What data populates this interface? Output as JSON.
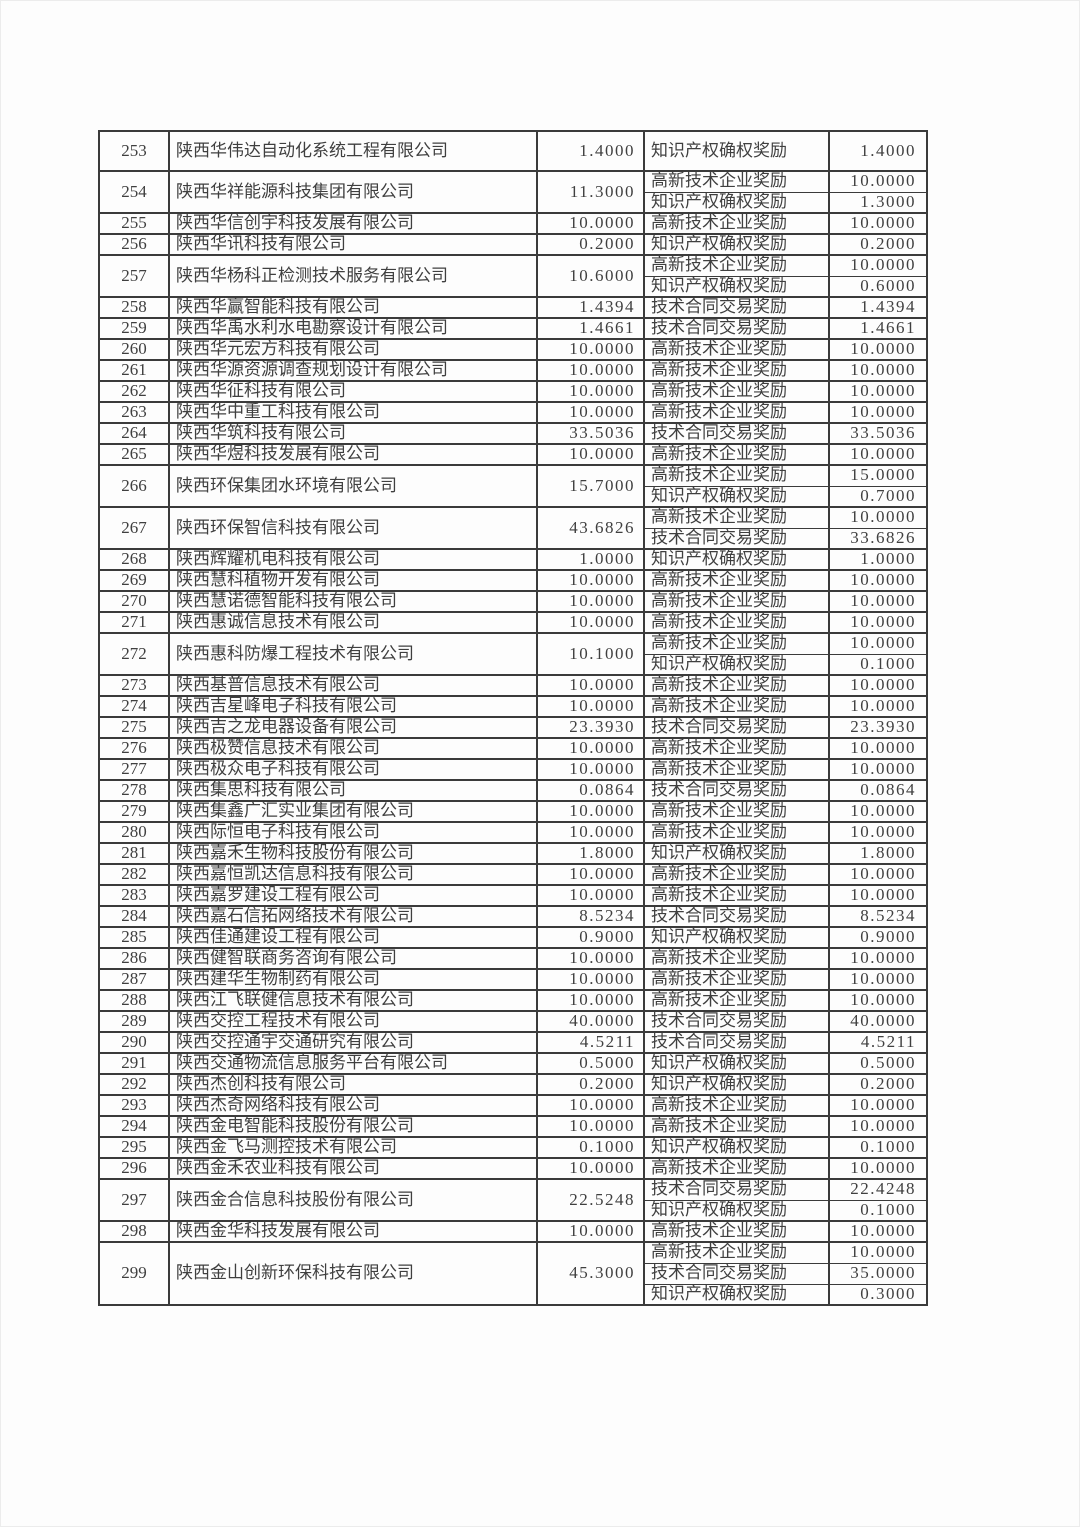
{
  "colors": {
    "table_border": "#3b3b3b",
    "text": "#3f3f3f",
    "page_background": "#fdfdfd"
  },
  "rows": [
    {
      "no": "253",
      "company": "陕西华伟达自动化系统工程有限公司",
      "total": "1.4000",
      "tall": true,
      "awards": [
        {
          "type": "知识产权确权奖励",
          "amount": "1.4000"
        }
      ]
    },
    {
      "no": "254",
      "company": "陕西华祥能源科技集团有限公司",
      "total": "11.3000",
      "awards": [
        {
          "type": "高新技术企业奖励",
          "amount": "10.0000"
        },
        {
          "type": "知识产权确权奖励",
          "amount": "1.3000"
        }
      ]
    },
    {
      "no": "255",
      "company": "陕西华信创宇科技发展有限公司",
      "total": "10.0000",
      "awards": [
        {
          "type": "高新技术企业奖励",
          "amount": "10.0000"
        }
      ]
    },
    {
      "no": "256",
      "company": "陕西华讯科技有限公司",
      "total": "0.2000",
      "awards": [
        {
          "type": "知识产权确权奖励",
          "amount": "0.2000"
        }
      ]
    },
    {
      "no": "257",
      "company": "陕西华杨科正检测技术服务有限公司",
      "total": "10.6000",
      "awards": [
        {
          "type": "高新技术企业奖励",
          "amount": "10.0000"
        },
        {
          "type": "知识产权确权奖励",
          "amount": "0.6000"
        }
      ]
    },
    {
      "no": "258",
      "company": "陕西华赢智能科技有限公司",
      "total": "1.4394",
      "awards": [
        {
          "type": "技术合同交易奖励",
          "amount": "1.4394"
        }
      ]
    },
    {
      "no": "259",
      "company": "陕西华禹水利水电勘察设计有限公司",
      "total": "1.4661",
      "awards": [
        {
          "type": "技术合同交易奖励",
          "amount": "1.4661"
        }
      ]
    },
    {
      "no": "260",
      "company": "陕西华元宏方科技有限公司",
      "total": "10.0000",
      "awards": [
        {
          "type": "高新技术企业奖励",
          "amount": "10.0000"
        }
      ]
    },
    {
      "no": "261",
      "company": "陕西华源资源调查规划设计有限公司",
      "total": "10.0000",
      "awards": [
        {
          "type": "高新技术企业奖励",
          "amount": "10.0000"
        }
      ]
    },
    {
      "no": "262",
      "company": "陕西华征科技有限公司",
      "total": "10.0000",
      "awards": [
        {
          "type": "高新技术企业奖励",
          "amount": "10.0000"
        }
      ]
    },
    {
      "no": "263",
      "company": "陕西华中重工科技有限公司",
      "total": "10.0000",
      "awards": [
        {
          "type": "高新技术企业奖励",
          "amount": "10.0000"
        }
      ]
    },
    {
      "no": "264",
      "company": "陕西华筑科技有限公司",
      "total": "33.5036",
      "awards": [
        {
          "type": "技术合同交易奖励",
          "amount": "33.5036"
        }
      ]
    },
    {
      "no": "265",
      "company": "陕西华煜科技发展有限公司",
      "total": "10.0000",
      "awards": [
        {
          "type": "高新技术企业奖励",
          "amount": "10.0000"
        }
      ]
    },
    {
      "no": "266",
      "company": "陕西环保集团水环境有限公司",
      "total": "15.7000",
      "awards": [
        {
          "type": "高新技术企业奖励",
          "amount": "15.0000"
        },
        {
          "type": "知识产权确权奖励",
          "amount": "0.7000"
        }
      ]
    },
    {
      "no": "267",
      "company": "陕西环保智信科技有限公司",
      "total": "43.6826",
      "awards": [
        {
          "type": "高新技术企业奖励",
          "amount": "10.0000"
        },
        {
          "type": "技术合同交易奖励",
          "amount": "33.6826"
        }
      ]
    },
    {
      "no": "268",
      "company": "陕西辉耀机电科技有限公司",
      "total": "1.0000",
      "awards": [
        {
          "type": "知识产权确权奖励",
          "amount": "1.0000"
        }
      ]
    },
    {
      "no": "269",
      "company": "陕西慧科植物开发有限公司",
      "total": "10.0000",
      "awards": [
        {
          "type": "高新技术企业奖励",
          "amount": "10.0000"
        }
      ]
    },
    {
      "no": "270",
      "company": "陕西慧诺德智能科技有限公司",
      "total": "10.0000",
      "awards": [
        {
          "type": "高新技术企业奖励",
          "amount": "10.0000"
        }
      ]
    },
    {
      "no": "271",
      "company": "陕西惠诚信息技术有限公司",
      "total": "10.0000",
      "awards": [
        {
          "type": "高新技术企业奖励",
          "amount": "10.0000"
        }
      ]
    },
    {
      "no": "272",
      "company": "陕西惠科防爆工程技术有限公司",
      "total": "10.1000",
      "awards": [
        {
          "type": "高新技术企业奖励",
          "amount": "10.0000"
        },
        {
          "type": "知识产权确权奖励",
          "amount": "0.1000"
        }
      ]
    },
    {
      "no": "273",
      "company": "陕西基普信息技术有限公司",
      "total": "10.0000",
      "awards": [
        {
          "type": "高新技术企业奖励",
          "amount": "10.0000"
        }
      ]
    },
    {
      "no": "274",
      "company": "陕西吉星峰电子科技有限公司",
      "total": "10.0000",
      "awards": [
        {
          "type": "高新技术企业奖励",
          "amount": "10.0000"
        }
      ]
    },
    {
      "no": "275",
      "company": "陕西吉之龙电器设备有限公司",
      "total": "23.3930",
      "awards": [
        {
          "type": "技术合同交易奖励",
          "amount": "23.3930"
        }
      ]
    },
    {
      "no": "276",
      "company": "陕西极赞信息技术有限公司",
      "total": "10.0000",
      "awards": [
        {
          "type": "高新技术企业奖励",
          "amount": "10.0000"
        }
      ]
    },
    {
      "no": "277",
      "company": "陕西极众电子科技有限公司",
      "total": "10.0000",
      "awards": [
        {
          "type": "高新技术企业奖励",
          "amount": "10.0000"
        }
      ]
    },
    {
      "no": "278",
      "company": "陕西集思科技有限公司",
      "total": "0.0864",
      "awards": [
        {
          "type": "技术合同交易奖励",
          "amount": "0.0864"
        }
      ]
    },
    {
      "no": "279",
      "company": "陕西集鑫广汇实业集团有限公司",
      "total": "10.0000",
      "awards": [
        {
          "type": "高新技术企业奖励",
          "amount": "10.0000"
        }
      ]
    },
    {
      "no": "280",
      "company": "陕西际恒电子科技有限公司",
      "total": "10.0000",
      "awards": [
        {
          "type": "高新技术企业奖励",
          "amount": "10.0000"
        }
      ]
    },
    {
      "no": "281",
      "company": "陕西嘉禾生物科技股份有限公司",
      "total": "1.8000",
      "awards": [
        {
          "type": "知识产权确权奖励",
          "amount": "1.8000"
        }
      ]
    },
    {
      "no": "282",
      "company": "陕西嘉恒凯达信息科技有限公司",
      "total": "10.0000",
      "awards": [
        {
          "type": "高新技术企业奖励",
          "amount": "10.0000"
        }
      ]
    },
    {
      "no": "283",
      "company": "陕西嘉罗建设工程有限公司",
      "total": "10.0000",
      "awards": [
        {
          "type": "高新技术企业奖励",
          "amount": "10.0000"
        }
      ]
    },
    {
      "no": "284",
      "company": "陕西嘉石信拓网络技术有限公司",
      "total": "8.5234",
      "awards": [
        {
          "type": "技术合同交易奖励",
          "amount": "8.5234"
        }
      ]
    },
    {
      "no": "285",
      "company": "陕西佳通建设工程有限公司",
      "total": "0.9000",
      "awards": [
        {
          "type": "知识产权确权奖励",
          "amount": "0.9000"
        }
      ]
    },
    {
      "no": "286",
      "company": "陕西健智联商务咨询有限公司",
      "total": "10.0000",
      "awards": [
        {
          "type": "高新技术企业奖励",
          "amount": "10.0000"
        }
      ]
    },
    {
      "no": "287",
      "company": "陕西建华生物制药有限公司",
      "total": "10.0000",
      "awards": [
        {
          "type": "高新技术企业奖励",
          "amount": "10.0000"
        }
      ]
    },
    {
      "no": "288",
      "company": "陕西江飞联健信息技术有限公司",
      "total": "10.0000",
      "awards": [
        {
          "type": "高新技术企业奖励",
          "amount": "10.0000"
        }
      ]
    },
    {
      "no": "289",
      "company": "陕西交控工程技术有限公司",
      "total": "40.0000",
      "awards": [
        {
          "type": "技术合同交易奖励",
          "amount": "40.0000"
        }
      ]
    },
    {
      "no": "290",
      "company": "陕西交控通宇交通研究有限公司",
      "total": "4.5211",
      "awards": [
        {
          "type": "技术合同交易奖励",
          "amount": "4.5211"
        }
      ]
    },
    {
      "no": "291",
      "company": "陕西交通物流信息服务平台有限公司",
      "total": "0.5000",
      "awards": [
        {
          "type": "知识产权确权奖励",
          "amount": "0.5000"
        }
      ]
    },
    {
      "no": "292",
      "company": "陕西杰创科技有限公司",
      "total": "0.2000",
      "awards": [
        {
          "type": "知识产权确权奖励",
          "amount": "0.2000"
        }
      ]
    },
    {
      "no": "293",
      "company": "陕西杰奇网络科技有限公司",
      "total": "10.0000",
      "awards": [
        {
          "type": "高新技术企业奖励",
          "amount": "10.0000"
        }
      ]
    },
    {
      "no": "294",
      "company": "陕西金电智能科技股份有限公司",
      "total": "10.0000",
      "awards": [
        {
          "type": "高新技术企业奖励",
          "amount": "10.0000"
        }
      ]
    },
    {
      "no": "295",
      "company": "陕西金飞马测控技术有限公司",
      "total": "0.1000",
      "awards": [
        {
          "type": "知识产权确权奖励",
          "amount": "0.1000"
        }
      ]
    },
    {
      "no": "296",
      "company": "陕西金禾农业科技有限公司",
      "total": "10.0000",
      "awards": [
        {
          "type": "高新技术企业奖励",
          "amount": "10.0000"
        }
      ]
    },
    {
      "no": "297",
      "company": "陕西金合信息科技股份有限公司",
      "total": "22.5248",
      "awards": [
        {
          "type": "技术合同交易奖励",
          "amount": "22.4248"
        },
        {
          "type": "知识产权确权奖励",
          "amount": "0.1000"
        }
      ]
    },
    {
      "no": "298",
      "company": "陕西金华科技发展有限公司",
      "total": "10.0000",
      "awards": [
        {
          "type": "高新技术企业奖励",
          "amount": "10.0000"
        }
      ]
    },
    {
      "no": "299",
      "company": "陕西金山创新环保科技有限公司",
      "total": "45.3000",
      "awards": [
        {
          "type": "高新技术企业奖励",
          "amount": "10.0000"
        },
        {
          "type": "技术合同交易奖励",
          "amount": "35.0000"
        },
        {
          "type": "知识产权确权奖励",
          "amount": "0.3000"
        }
      ]
    }
  ]
}
